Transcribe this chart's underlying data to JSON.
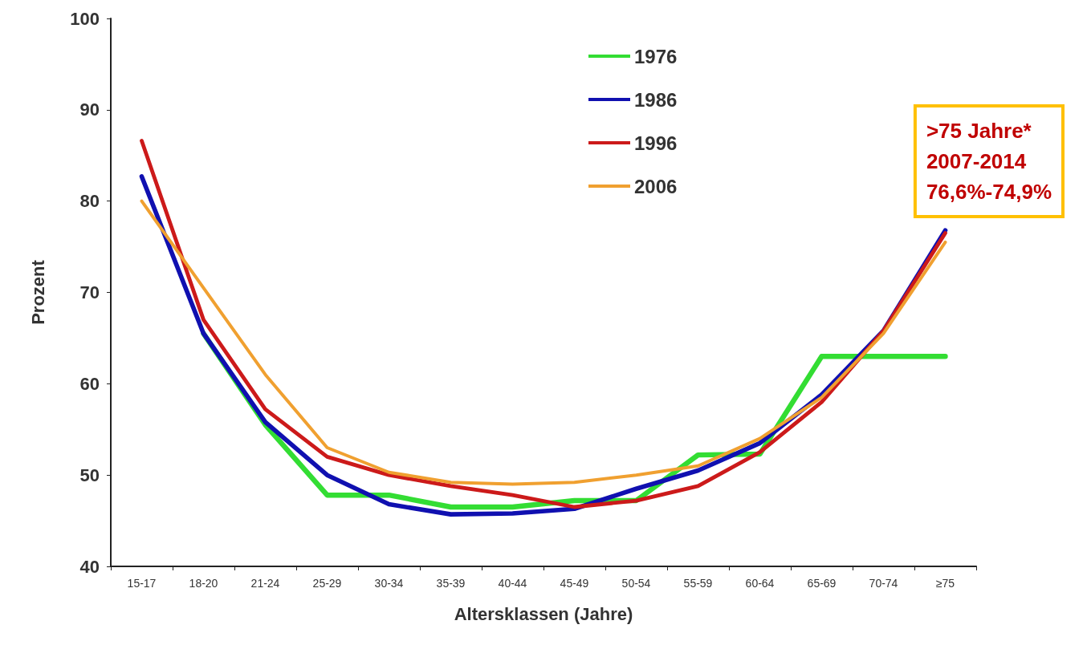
{
  "chart_data": {
    "type": "line",
    "xlabel": "Altersklassen (Jahre)",
    "ylabel": "Prozent",
    "categories": [
      "15-17",
      "18-20",
      "21-24",
      "25-29",
      "30-34",
      "35-39",
      "40-44",
      "45-49",
      "50-54",
      "55-59",
      "60-64",
      "65-69",
      "70-74",
      "≥75"
    ],
    "series": [
      {
        "name": "1976",
        "color": "#33dd33",
        "values": [
          null,
          65.5,
          55.5,
          47.8,
          47.8,
          46.5,
          46.5,
          47.2,
          47.2,
          52.2,
          52.3,
          63,
          63,
          63
        ]
      },
      {
        "name": "1986",
        "color": "#1010b0",
        "values": [
          82.7,
          65.5,
          55.8,
          50,
          46.8,
          45.7,
          45.8,
          46.3,
          48.5,
          50.5,
          53.5,
          58.8,
          65.8,
          76.8
        ]
      },
      {
        "name": "1996",
        "color": "#cc1a1a",
        "values": [
          86.6,
          67,
          57.2,
          52,
          50,
          48.8,
          47.8,
          46.5,
          47.2,
          48.8,
          52.5,
          58,
          65.8,
          76.5
        ]
      },
      {
        "name": "2006",
        "color": "#f0a030",
        "values": [
          80,
          70.5,
          61,
          53,
          50.3,
          49.2,
          49,
          49.2,
          50,
          51,
          54,
          58.5,
          65.5,
          75.5
        ]
      }
    ],
    "ylim": [
      40,
      100
    ],
    "yticks": [
      40,
      50,
      60,
      70,
      80,
      90,
      100
    ],
    "grid": false,
    "legend": "top",
    "marker": "none",
    "line_style": "solid",
    "annotations": [
      ">75 Jahre*\n2007-2014\n76,6%-74,9%"
    ]
  }
}
